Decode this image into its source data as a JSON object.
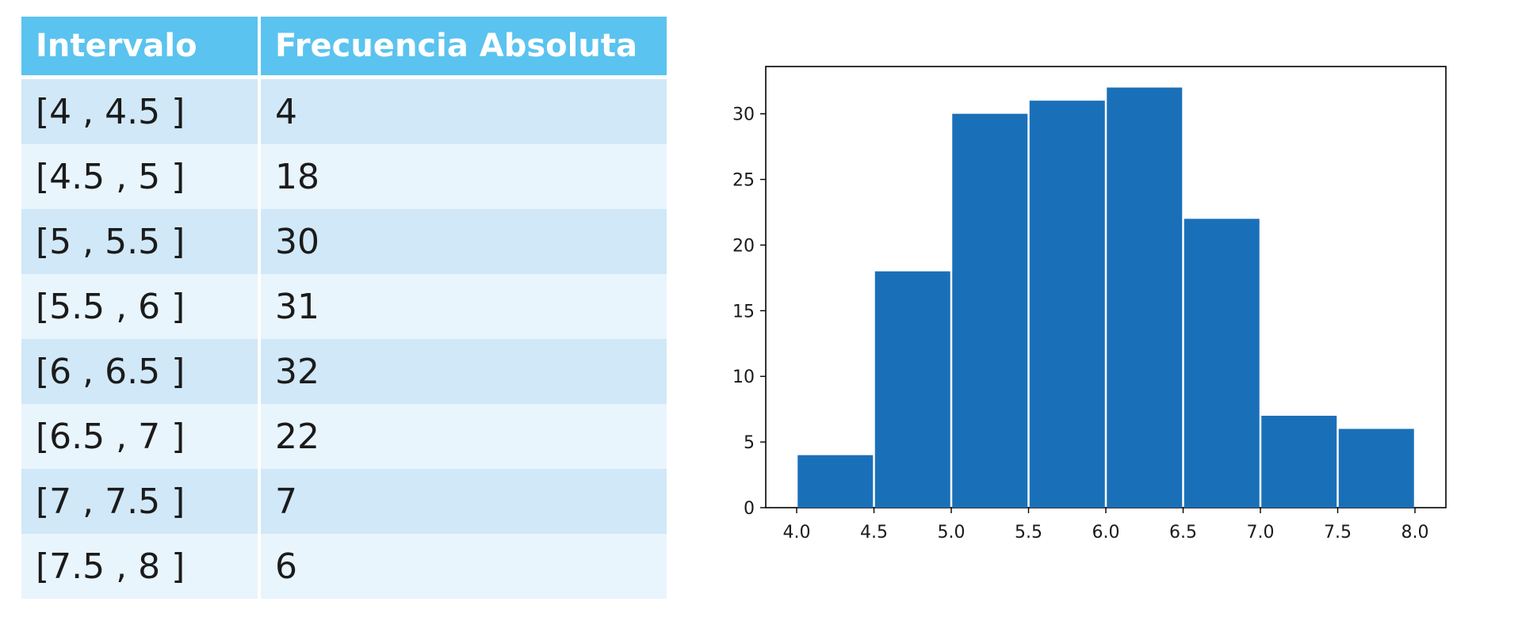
{
  "table": {
    "headers": [
      "Intervalo",
      "Frecuencia Absoluta"
    ],
    "rows": [
      {
        "interval": "[4 , 4.5 ]",
        "frequency": "4"
      },
      {
        "interval": "[4.5 , 5 ]",
        "frequency": "18"
      },
      {
        "interval": "[5 , 5.5 ]",
        "frequency": "30"
      },
      {
        "interval": "[5.5 , 6 ]",
        "frequency": "31"
      },
      {
        "interval": "[6 , 6.5 ]",
        "frequency": "32"
      },
      {
        "interval": "[6.5 , 7 ]",
        "frequency": "22"
      },
      {
        "interval": "[7 , 7.5 ]",
        "frequency": "7"
      },
      {
        "interval": "[7.5 , 8 ]",
        "frequency": "6"
      }
    ],
    "colors": {
      "header": "#5bc3ef",
      "row_dark": "#d1e8f8",
      "row_light": "#e9f5fc"
    }
  },
  "chart_data": {
    "type": "bar",
    "title": "",
    "xlabel": "",
    "ylabel": "",
    "bin_edges": [
      4.0,
      4.5,
      5.0,
      5.5,
      6.0,
      6.5,
      7.0,
      7.5,
      8.0
    ],
    "values": [
      4,
      18,
      30,
      31,
      32,
      22,
      7,
      6
    ],
    "xlim": [
      3.8,
      8.2
    ],
    "ylim": [
      0,
      33.6
    ],
    "x_ticks": [
      4.0,
      4.5,
      5.0,
      5.5,
      6.0,
      6.5,
      7.0,
      7.5,
      8.0
    ],
    "x_tick_labels": [
      "4.0",
      "4.5",
      "5.0",
      "5.5",
      "6.0",
      "6.5",
      "7.0",
      "7.5",
      "8.0"
    ],
    "y_ticks": [
      0,
      5,
      10,
      15,
      20,
      25,
      30
    ],
    "y_tick_labels": [
      "0",
      "5",
      "10",
      "15",
      "20",
      "25",
      "30"
    ],
    "bar_color": "#1a70b8",
    "grid": false,
    "legend": "none"
  }
}
